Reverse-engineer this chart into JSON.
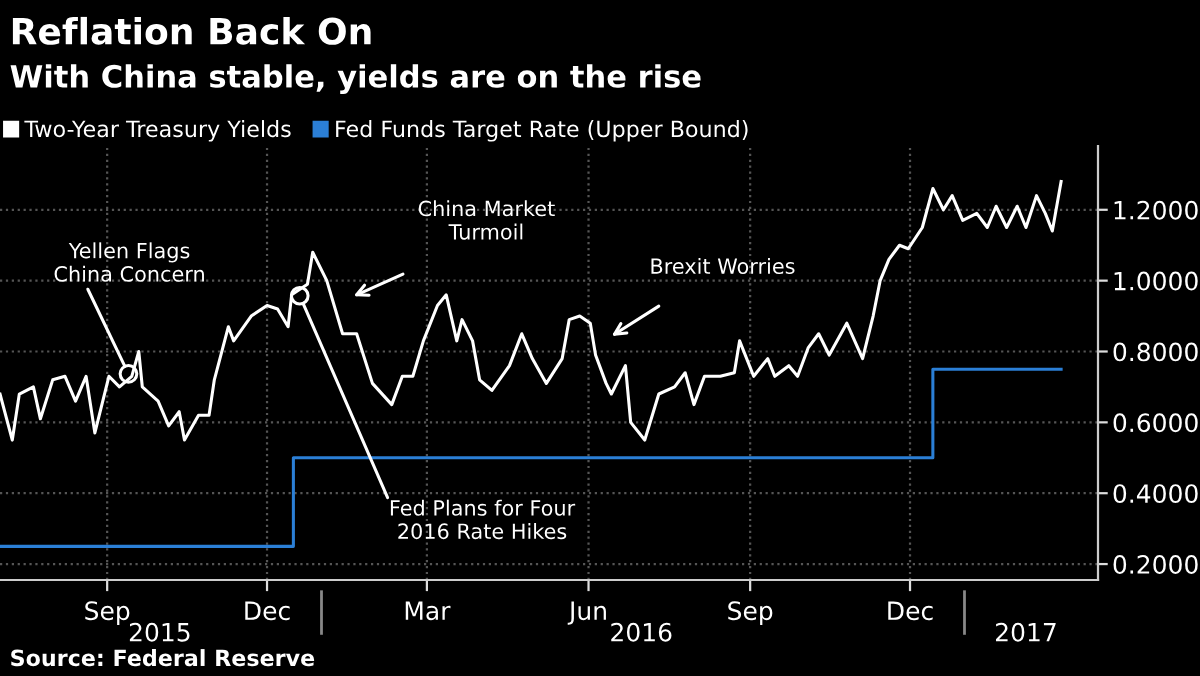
{
  "chart_data": {
    "type": "line",
    "title": "Reflation Back On",
    "subtitle": "With China stable, yields are on the rise",
    "series": [
      {
        "name": "Two-Year Treasury Yields",
        "color": "#ffffff",
        "x": [
          "2015-07-02",
          "2015-07-09",
          "2015-07-13",
          "2015-07-21",
          "2015-07-25",
          "2015-08-01",
          "2015-08-08",
          "2015-08-14",
          "2015-08-20",
          "2015-08-25",
          "2015-09-02",
          "2015-09-08",
          "2015-09-15",
          "2015-09-19",
          "2015-09-21",
          "2015-09-30",
          "2015-10-06",
          "2015-10-12",
          "2015-10-15",
          "2015-10-23",
          "2015-10-29",
          "2015-11-01",
          "2015-11-09",
          "2015-11-12",
          "2015-11-22",
          "2015-12-01",
          "2015-12-07",
          "2015-12-13",
          "2015-12-15",
          "2015-12-18",
          "2015-12-24",
          "2015-12-27",
          "2016-01-04",
          "2016-01-13",
          "2016-01-21",
          "2016-01-30",
          "2016-02-10",
          "2016-02-16",
          "2016-02-22",
          "2016-02-28",
          "2016-03-07",
          "2016-03-12",
          "2016-03-18",
          "2016-03-21",
          "2016-03-27",
          "2016-03-31",
          "2016-04-07",
          "2016-04-17",
          "2016-04-24",
          "2016-04-30",
          "2016-05-08",
          "2016-05-17",
          "2016-05-21",
          "2016-05-27",
          "2016-06-02",
          "2016-06-05",
          "2016-06-11",
          "2016-06-14",
          "2016-06-22",
          "2016-06-25",
          "2016-07-03",
          "2016-07-11",
          "2016-07-20",
          "2016-07-26",
          "2016-07-31",
          "2016-08-06",
          "2016-08-15",
          "2016-08-23",
          "2016-08-26",
          "2016-09-03",
          "2016-09-11",
          "2016-09-15",
          "2016-09-23",
          "2016-09-28",
          "2016-10-04",
          "2016-10-10",
          "2016-10-16",
          "2016-10-26",
          "2016-11-04",
          "2016-11-10",
          "2016-11-14",
          "2016-11-19",
          "2016-11-25",
          "2016-11-30",
          "2016-12-08",
          "2016-12-14",
          "2016-12-20",
          "2016-12-25",
          "2016-12-31",
          "2017-01-08",
          "2017-01-14",
          "2017-01-19",
          "2017-01-25",
          "2017-01-31",
          "2017-02-05",
          "2017-02-11",
          "2017-02-16",
          "2017-02-20",
          "2017-02-25"
        ],
        "values": [
          0.68,
          0.55,
          0.68,
          0.7,
          0.61,
          0.72,
          0.73,
          0.66,
          0.73,
          0.57,
          0.73,
          0.7,
          0.73,
          0.8,
          0.7,
          0.66,
          0.59,
          0.63,
          0.55,
          0.62,
          0.62,
          0.72,
          0.87,
          0.83,
          0.9,
          0.93,
          0.92,
          0.87,
          0.96,
          0.97,
          0.99,
          1.08,
          1.0,
          0.85,
          0.85,
          0.71,
          0.65,
          0.73,
          0.73,
          0.83,
          0.93,
          0.96,
          0.83,
          0.89,
          0.83,
          0.72,
          0.69,
          0.76,
          0.85,
          0.78,
          0.71,
          0.78,
          0.89,
          0.9,
          0.88,
          0.79,
          0.71,
          0.68,
          0.76,
          0.6,
          0.55,
          0.68,
          0.7,
          0.74,
          0.65,
          0.73,
          0.73,
          0.74,
          0.83,
          0.73,
          0.78,
          0.73,
          0.76,
          0.73,
          0.81,
          0.85,
          0.79,
          0.88,
          0.78,
          0.9,
          1.0,
          1.06,
          1.1,
          1.09,
          1.15,
          1.26,
          1.2,
          1.24,
          1.17,
          1.19,
          1.15,
          1.21,
          1.15,
          1.21,
          1.15,
          1.24,
          1.19,
          1.14,
          1.28
        ]
      },
      {
        "name": "Fed Funds Target Rate (Upper Bound)",
        "color": "#2b7fd6",
        "type": "step",
        "x": [
          "2015-07-02",
          "2015-12-16",
          "2016-12-14",
          "2017-02-25"
        ],
        "values": [
          0.25,
          0.5,
          0.75,
          0.75
        ]
      }
    ],
    "xlim": [
      "2015-07-02",
      "2017-03-18"
    ],
    "xticks": [
      {
        "value": "2015-09-01",
        "label": "Sep"
      },
      {
        "value": "2015-12-01",
        "label": "Dec"
      },
      {
        "value": "2016-03-01",
        "label": "Mar"
      },
      {
        "value": "2016-06-01",
        "label": "Jun"
      },
      {
        "value": "2016-09-01",
        "label": "Sep"
      },
      {
        "value": "2016-12-01",
        "label": "Dec"
      }
    ],
    "x2lim": [
      "2015-07-02",
      "2017-03-18"
    ],
    "x2ticks": [
      {
        "value": "2015-10-01",
        "label": "2015"
      },
      {
        "value": "2016-07-01",
        "label": "2016"
      },
      {
        "value": "2017-02-05",
        "label": "2017"
      }
    ],
    "ylim": [
      0.155,
      1.38
    ],
    "yticks": [
      {
        "value": 0.2,
        "label": "0.2000"
      },
      {
        "value": 0.4,
        "label": "0.4000"
      },
      {
        "value": 0.6,
        "label": "0.6000"
      },
      {
        "value": 0.8,
        "label": "0.8000"
      },
      {
        "value": 1.0,
        "label": "1.0000"
      },
      {
        "value": 1.2,
        "label": "1.2000"
      }
    ],
    "grid": true,
    "legend": "top left",
    "annotations": [
      "Yellen Flags\nChina Concern",
      "China Market\nTurmoil",
      "Fed Plans for Four\n2016 Rate Hikes",
      "Brexit Worries",
      "Source: Federal Reserve"
    ]
  }
}
